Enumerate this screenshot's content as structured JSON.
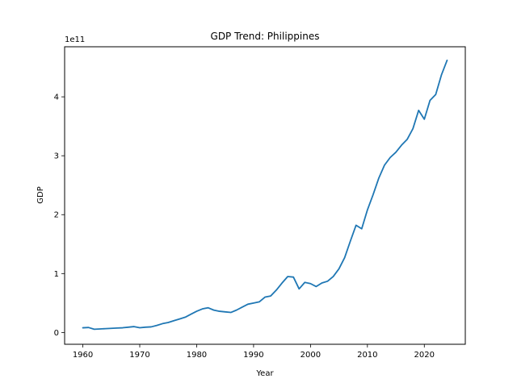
{
  "chart_data": {
    "type": "line",
    "title": "GDP Trend: Philippines",
    "xlabel": "Year",
    "ylabel": "GDP",
    "y_offset_label": "1e11",
    "xlim": [
      1956.8,
      2027.2
    ],
    "ylim": [
      -0.2,
      4.85
    ],
    "x_ticks": [
      1960,
      1970,
      1980,
      1990,
      2000,
      2010,
      2020
    ],
    "y_ticks": [
      0,
      1,
      2,
      3,
      4
    ],
    "grid": false,
    "series": [
      {
        "color": "#1f77b4",
        "x": [
          1960,
          1961,
          1962,
          1963,
          1964,
          1965,
          1966,
          1967,
          1968,
          1969,
          1970,
          1971,
          1972,
          1973,
          1974,
          1975,
          1976,
          1977,
          1978,
          1979,
          1980,
          1981,
          1982,
          1983,
          1984,
          1985,
          1986,
          1987,
          1988,
          1989,
          1990,
          1991,
          1992,
          1993,
          1994,
          1995,
          1996,
          1997,
          1998,
          1999,
          2000,
          2001,
          2002,
          2003,
          2004,
          2005,
          2006,
          2007,
          2008,
          2009,
          2010,
          2011,
          2012,
          2013,
          2014,
          2015,
          2016,
          2017,
          2018,
          2019,
          2020,
          2021,
          2022,
          2023,
          2024
        ],
        "y": [
          0.08,
          0.085,
          0.055,
          0.06,
          0.065,
          0.07,
          0.075,
          0.08,
          0.09,
          0.1,
          0.08,
          0.09,
          0.095,
          0.12,
          0.15,
          0.17,
          0.2,
          0.23,
          0.26,
          0.31,
          0.36,
          0.4,
          0.42,
          0.38,
          0.36,
          0.35,
          0.34,
          0.38,
          0.43,
          0.48,
          0.5,
          0.52,
          0.6,
          0.62,
          0.72,
          0.84,
          0.95,
          0.94,
          0.74,
          0.85,
          0.83,
          0.78,
          0.84,
          0.87,
          0.95,
          1.08,
          1.27,
          1.55,
          1.82,
          1.76,
          2.08,
          2.34,
          2.62,
          2.84,
          2.97,
          3.06,
          3.18,
          3.28,
          3.46,
          3.77,
          3.62,
          3.94,
          4.04,
          4.37,
          4.62
        ]
      }
    ]
  }
}
